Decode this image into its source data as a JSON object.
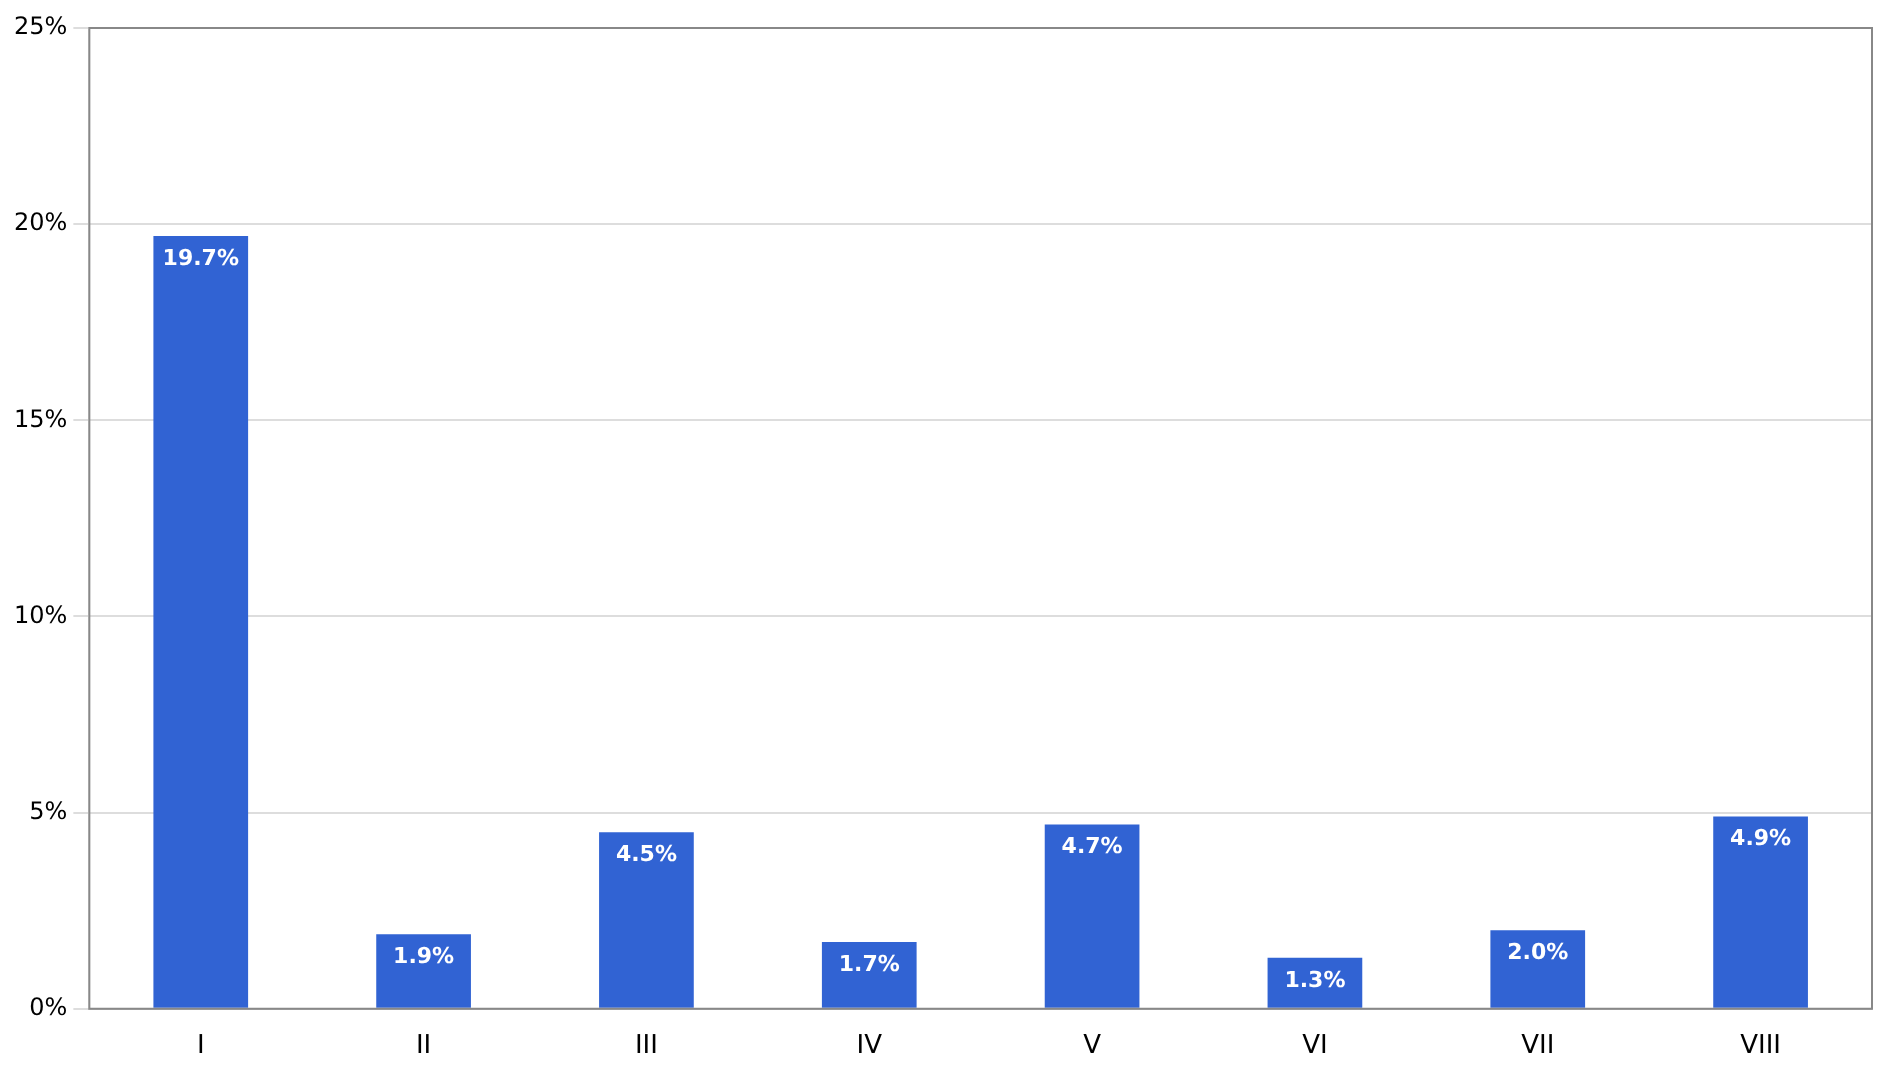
{
  "chart_data": {
    "type": "bar",
    "categories": [
      "I",
      "II",
      "III",
      "IV",
      "V",
      "VI",
      "VII",
      "VIII"
    ],
    "values": [
      19.7,
      1.9,
      4.5,
      1.7,
      4.7,
      1.3,
      2.0,
      4.9
    ],
    "value_labels": [
      "19.7%",
      "1.9%",
      "4.5%",
      "1.7%",
      "4.7%",
      "1.3%",
      "2.0%",
      "4.9%"
    ],
    "color": "#3163d3",
    "ylim": [
      0,
      25
    ],
    "yticks": [
      {
        "value": 0,
        "label": "0%"
      },
      {
        "value": 5,
        "label": "5%"
      },
      {
        "value": 10,
        "label": "10%"
      },
      {
        "value": 15,
        "label": "15%"
      },
      {
        "value": 20,
        "label": "20%"
      },
      {
        "value": 25,
        "label": "25%"
      }
    ],
    "grid": "y",
    "legend": false
  }
}
